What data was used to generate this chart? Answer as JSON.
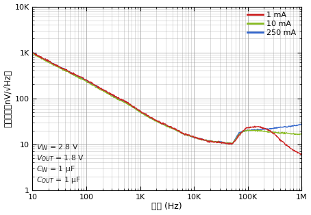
{
  "title": "",
  "xlabel": "频率 (Hz)",
  "ylabel": "输出噪声（nV/√Hz）",
  "xlim": [
    10,
    1000000
  ],
  "ylim": [
    1,
    10000
  ],
  "legend_labels": [
    "1 mA",
    "10 mA",
    "250 mA"
  ],
  "legend_colors": [
    "#cc2222",
    "#88bb22",
    "#3366cc"
  ],
  "background_color": "#ffffff",
  "grid_color": "#999999",
  "curve_1mA": {
    "log_freqs": [
      1.0,
      1.176,
      1.301,
      1.477,
      1.602,
      1.699,
      1.845,
      1.903,
      2.0,
      2.176,
      2.301,
      2.477,
      2.602,
      2.699,
      2.845,
      2.903,
      3.0,
      3.176,
      3.301,
      3.477,
      3.602,
      3.699,
      3.845,
      3.903,
      4.0,
      4.176,
      4.301,
      4.477,
      4.602,
      4.699,
      4.845,
      4.903,
      5.0,
      5.176,
      5.301,
      5.477,
      5.602,
      5.699,
      5.845,
      5.903,
      6.0
    ],
    "log_noise": [
      3.0,
      2.88,
      2.81,
      2.7,
      2.63,
      2.57,
      2.49,
      2.46,
      2.4,
      2.28,
      2.2,
      2.08,
      2.0,
      1.95,
      1.84,
      1.8,
      1.72,
      1.6,
      1.52,
      1.42,
      1.36,
      1.3,
      1.22,
      1.2,
      1.16,
      1.1,
      1.06,
      1.04,
      1.02,
      1.01,
      1.2,
      1.28,
      1.36,
      1.38,
      1.35,
      1.24,
      1.1,
      1.0,
      0.88,
      0.84,
      0.78
    ]
  },
  "curve_10mA": {
    "log_freqs": [
      1.0,
      1.176,
      1.301,
      1.477,
      1.602,
      1.699,
      1.845,
      1.903,
      2.0,
      2.176,
      2.301,
      2.477,
      2.602,
      2.699,
      2.845,
      2.903,
      3.0,
      3.176,
      3.301,
      3.477,
      3.602,
      3.699,
      3.845,
      3.903,
      4.0,
      4.176,
      4.301,
      4.477,
      4.602,
      4.699,
      4.845,
      4.903,
      5.0,
      5.176,
      5.301,
      5.477,
      5.602,
      5.699,
      5.845,
      5.903,
      6.0
    ],
    "log_noise": [
      2.98,
      2.86,
      2.79,
      2.68,
      2.61,
      2.55,
      2.46,
      2.43,
      2.37,
      2.25,
      2.17,
      2.05,
      1.97,
      1.92,
      1.82,
      1.78,
      1.7,
      1.58,
      1.5,
      1.4,
      1.34,
      1.29,
      1.21,
      1.19,
      1.15,
      1.1,
      1.07,
      1.04,
      1.03,
      1.02,
      1.22,
      1.27,
      1.3,
      1.3,
      1.28,
      1.26,
      1.25,
      1.24,
      1.23,
      1.22,
      1.22
    ]
  },
  "curve_250mA": {
    "log_freqs": [
      1.0,
      1.176,
      1.301,
      1.477,
      1.602,
      1.699,
      1.845,
      1.903,
      2.0,
      2.176,
      2.301,
      2.477,
      2.602,
      2.699,
      2.845,
      2.903,
      3.0,
      3.176,
      3.301,
      3.477,
      3.602,
      3.699,
      3.845,
      3.903,
      4.0,
      4.176,
      4.301,
      4.477,
      4.602,
      4.699,
      4.845,
      4.903,
      5.0,
      5.176,
      5.301,
      5.477,
      5.602,
      5.699,
      5.845,
      5.903,
      6.0
    ],
    "log_noise": [
      3.0,
      2.88,
      2.81,
      2.7,
      2.63,
      2.57,
      2.48,
      2.45,
      2.39,
      2.27,
      2.19,
      2.07,
      1.99,
      1.94,
      1.83,
      1.79,
      1.71,
      1.59,
      1.51,
      1.41,
      1.35,
      1.29,
      1.21,
      1.19,
      1.15,
      1.1,
      1.07,
      1.05,
      1.03,
      1.02,
      1.25,
      1.28,
      1.3,
      1.32,
      1.33,
      1.35,
      1.37,
      1.38,
      1.4,
      1.41,
      1.44
    ]
  }
}
